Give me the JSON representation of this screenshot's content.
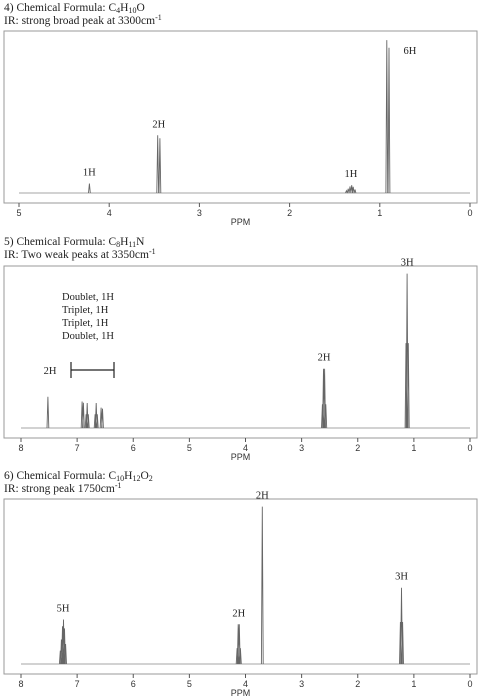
{
  "problems": [
    {
      "number": "4)",
      "formula_label": "Chemical Formula: ",
      "formula": [
        [
          "C",
          ""
        ],
        [
          "4",
          "sub"
        ],
        [
          "H",
          ""
        ],
        [
          "10",
          "sub"
        ],
        [
          "O",
          ""
        ]
      ],
      "ir_label": "IR: ",
      "ir_text": "strong broad peak at 3300cm",
      "ir_sup": "-1"
    },
    {
      "number": "5)",
      "formula_label": "Chemical Formula: ",
      "formula": [
        [
          "C",
          ""
        ],
        [
          "8",
          "sub"
        ],
        [
          "H",
          ""
        ],
        [
          "11",
          "sub"
        ],
        [
          "N",
          ""
        ]
      ],
      "ir_label": "IR: ",
      "ir_text": "Two weak peaks at 3350cm",
      "ir_sup": "-1"
    },
    {
      "number": "6)",
      "formula_label": "Chemical Formula: ",
      "formula": [
        [
          "C",
          ""
        ],
        [
          "10",
          "sub"
        ],
        [
          "H",
          ""
        ],
        [
          "12",
          "sub"
        ],
        [
          "O",
          ""
        ],
        [
          "2",
          "sub"
        ]
      ],
      "ir_label": "IR: ",
      "ir_text": "strong peak 1750cm",
      "ir_sup": "-1"
    }
  ],
  "chart_data": [
    {
      "type": "line",
      "xlabel": "PPM",
      "xlim": [
        5,
        0
      ],
      "reversed_x": true,
      "ticks": [
        5,
        4,
        3,
        2,
        1,
        0
      ],
      "ylim": [
        0,
        1
      ],
      "peaks": [
        {
          "shift": 4.22,
          "height": 0.06,
          "pattern": "single",
          "label": "1H"
        },
        {
          "shift": 3.45,
          "height": 0.37,
          "pattern": "doublet",
          "label": "2H"
        },
        {
          "shift": 1.32,
          "height": 0.05,
          "pattern": "multiplet",
          "label": "1H"
        },
        {
          "shift": 0.91,
          "height": 0.98,
          "pattern": "doublet",
          "label": "6H"
        }
      ]
    },
    {
      "type": "line",
      "xlabel": "PPM",
      "xlim": [
        8,
        0
      ],
      "reversed_x": true,
      "ticks": [
        8,
        7,
        6,
        5,
        4,
        3,
        2,
        1,
        0
      ],
      "ylim": [
        0,
        1
      ],
      "peaks": [
        {
          "shift": 7.52,
          "height": 0.2,
          "pattern": "single",
          "label": "2H"
        },
        {
          "shift": 6.9,
          "height": 0.17,
          "pattern": "doublet",
          "label": ""
        },
        {
          "shift": 6.82,
          "height": 0.16,
          "pattern": "triplet",
          "label": ""
        },
        {
          "shift": 6.66,
          "height": 0.16,
          "pattern": "triplet",
          "label": ""
        },
        {
          "shift": 6.56,
          "height": 0.13,
          "pattern": "doublet",
          "label": ""
        },
        {
          "shift": 2.6,
          "height": 0.38,
          "pattern": "quartet",
          "label": "2H"
        },
        {
          "shift": 1.12,
          "height": 0.99,
          "pattern": "triplet",
          "label": "3H"
        }
      ],
      "annotations": [
        "Doublet, 1H",
        "Triplet, 1H",
        "Triplet, 1H",
        "Doublet, 1H"
      ]
    },
    {
      "type": "line",
      "xlabel": "PPM",
      "xlim": [
        8,
        0
      ],
      "reversed_x": true,
      "ticks": [
        8,
        7,
        6,
        5,
        4,
        3,
        2,
        1,
        0
      ],
      "ylim": [
        0,
        1
      ],
      "peaks": [
        {
          "shift": 7.25,
          "height": 0.28,
          "pattern": "multiplet",
          "label": "5H"
        },
        {
          "shift": 4.12,
          "height": 0.25,
          "pattern": "quartet",
          "label": "2H"
        },
        {
          "shift": 3.7,
          "height": 0.99,
          "pattern": "single",
          "label": "2H"
        },
        {
          "shift": 1.22,
          "height": 0.48,
          "pattern": "triplet",
          "label": "3H"
        }
      ]
    }
  ]
}
